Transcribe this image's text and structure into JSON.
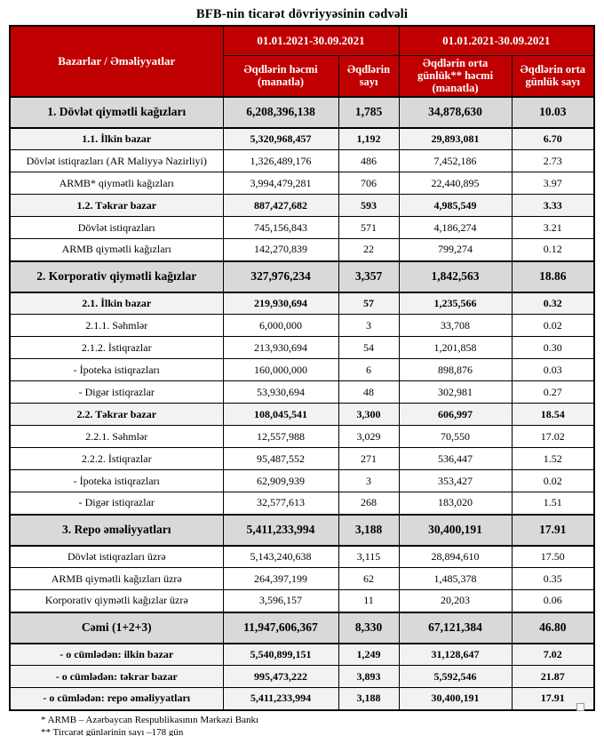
{
  "title": "BFB-nin ticarət dövriyyəsinin cədvəli",
  "table": {
    "corner_header": "Bazarlar / Əməliyyatlar",
    "period_headers": [
      "01.01.2021-30.09.2021",
      "01.01.2021-30.09.2021"
    ],
    "column_headers": [
      "Əqdlərin həcmi (manatla)",
      "Əqdlərin sayı",
      "Əqdlərin orta günlük** həcmi (manatla)",
      "Əqdlərin orta günlük sayı"
    ],
    "rows": [
      {
        "label": "1. Dövlət qiymətli kağızları",
        "style": "section",
        "values": [
          "6,208,396,138",
          "1,785",
          "34,878,630",
          "10.03"
        ]
      },
      {
        "label": "1.1. İlkin bazar",
        "style": "subsection",
        "values": [
          "5,320,968,457",
          "1,192",
          "29,893,081",
          "6.70"
        ]
      },
      {
        "label": "Dövlət istiqrazları (AR Maliyyə Nazirliyi)",
        "style": "normal",
        "values": [
          "1,326,489,176",
          "486",
          "7,452,186",
          "2.73"
        ]
      },
      {
        "label": "ARMB* qiymətli kağızları",
        "style": "normal",
        "values": [
          "3,994,479,281",
          "706",
          "22,440,895",
          "3.97"
        ]
      },
      {
        "label": "1.2. Təkrar bazar",
        "style": "subsection",
        "values": [
          "887,427,682",
          "593",
          "4,985,549",
          "3.33"
        ]
      },
      {
        "label": "Dövlət istiqrazları",
        "style": "normal",
        "values": [
          "745,156,843",
          "571",
          "4,186,274",
          "3.21"
        ]
      },
      {
        "label": "ARMB qiymətli kağızları",
        "style": "normal",
        "values": [
          "142,270,839",
          "22",
          "799,274",
          "0.12"
        ]
      },
      {
        "label": "2. Korporativ qiymətli kağızlar",
        "style": "section",
        "values": [
          "327,976,234",
          "3,357",
          "1,842,563",
          "18.86"
        ]
      },
      {
        "label": "2.1. İlkin bazar",
        "style": "subsection",
        "values": [
          "219,930,694",
          "57",
          "1,235,566",
          "0.32"
        ]
      },
      {
        "label": "2.1.1. Səhmlər",
        "style": "normal",
        "values": [
          "6,000,000",
          "3",
          "33,708",
          "0.02"
        ]
      },
      {
        "label": "2.1.2. İstiqrazlar",
        "style": "normal",
        "values": [
          "213,930,694",
          "54",
          "1,201,858",
          "0.30"
        ]
      },
      {
        "label": "-  İpoteka istiqrazları",
        "style": "normal",
        "values": [
          "160,000,000",
          "6",
          "898,876",
          "0.03"
        ]
      },
      {
        "label": "-  Digər istiqrazlar",
        "style": "normal",
        "values": [
          "53,930,694",
          "48",
          "302,981",
          "0.27"
        ]
      },
      {
        "label": "2.2. Təkrar bazar",
        "style": "subsection",
        "values": [
          "108,045,541",
          "3,300",
          "606,997",
          "18.54"
        ]
      },
      {
        "label": "2.2.1. Səhmlər",
        "style": "normal",
        "values": [
          "12,557,988",
          "3,029",
          "70,550",
          "17.02"
        ]
      },
      {
        "label": "2.2.2. İstiqrazlar",
        "style": "normal",
        "values": [
          "95,487,552",
          "271",
          "536,447",
          "1.52"
        ]
      },
      {
        "label": "-  İpoteka istiqrazları",
        "style": "normal",
        "values": [
          "62,909,939",
          "3",
          "353,427",
          "0.02"
        ]
      },
      {
        "label": "-  Digər istiqrazlar",
        "style": "normal",
        "values": [
          "32,577,613",
          "268",
          "183,020",
          "1.51"
        ]
      },
      {
        "label": "3. Repo əməliyyatları",
        "style": "section",
        "values": [
          "5,411,233,994",
          "3,188",
          "30,400,191",
          "17.91"
        ]
      },
      {
        "label": "Dövlət istiqrazları üzrə",
        "style": "normal",
        "values": [
          "5,143,240,638",
          "3,115",
          "28,894,610",
          "17.50"
        ]
      },
      {
        "label": "ARMB qiymətli kağızları üzrə",
        "style": "normal",
        "values": [
          "264,397,199",
          "62",
          "1,485,378",
          "0.35"
        ]
      },
      {
        "label": "Korporativ qiymətli kağızlar üzrə",
        "style": "normal",
        "values": [
          "3,596,157",
          "11",
          "20,203",
          "0.06"
        ]
      },
      {
        "label": "Cəmi (1+2+3)",
        "style": "section",
        "values": [
          "11,947,606,367",
          "8,330",
          "67,121,384",
          "46.80"
        ]
      },
      {
        "label": "-  o cümlədən: ilkin bazar",
        "style": "subsection",
        "values": [
          "5,540,899,151",
          "1,249",
          "31,128,647",
          "7.02"
        ]
      },
      {
        "label": "-  o cümlədən: təkrar bazar",
        "style": "subsection",
        "values": [
          "995,473,222",
          "3,893",
          "5,592,546",
          "21.87"
        ]
      },
      {
        "label": "-  o cümlədən: repo əməliyyatları",
        "style": "subsection",
        "values": [
          "5,411,233,994",
          "3,188",
          "30,400,191",
          "17.91"
        ]
      }
    ]
  },
  "footnotes": [
    "* ARMB – Azərbaycan Respublikasının Mərkəzi Bankı",
    "** Tircarət günlərinin sayı –178 gün"
  ],
  "colors": {
    "header_bg": "#c00000",
    "header_text": "#ffffff",
    "section_row_bg": "#d9d9d9",
    "subsection_row_bg": "#f2f2f2",
    "border": "#000000"
  }
}
